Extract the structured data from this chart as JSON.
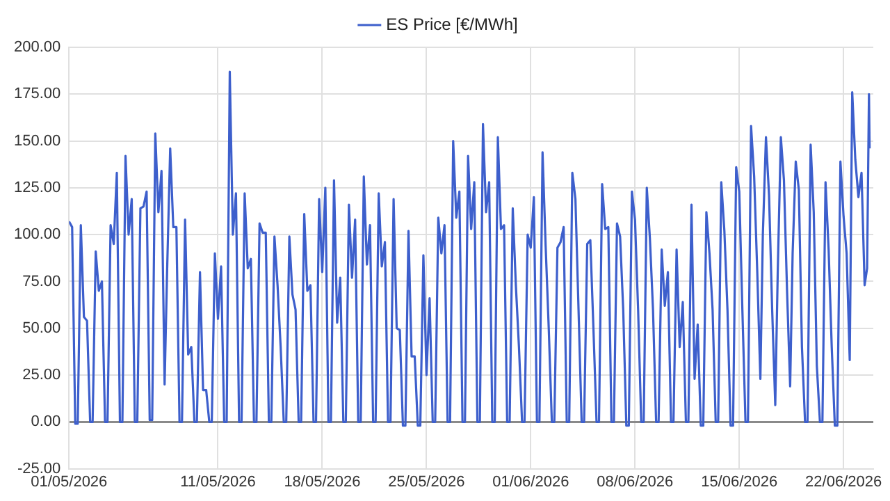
{
  "chart_data": {
    "type": "line",
    "legend": "top",
    "grid": true,
    "marker": "none",
    "line_style": "solid",
    "xlim": [
      "2026-05-01",
      "2026-06-24"
    ],
    "xticks": [
      {
        "value": "2026-05-01",
        "label": "01/05/2026"
      },
      {
        "value": "2026-05-11",
        "label": "11/05/2026"
      },
      {
        "value": "2026-05-18",
        "label": "18/05/2026"
      },
      {
        "value": "2026-05-25",
        "label": "25/05/2026"
      },
      {
        "value": "2026-06-01",
        "label": "01/06/2026"
      },
      {
        "value": "2026-06-08",
        "label": "08/06/2026"
      },
      {
        "value": "2026-06-15",
        "label": "15/06/2026"
      },
      {
        "value": "2026-06-22",
        "label": "22/06/2026"
      }
    ],
    "ylim": [
      -25,
      200
    ],
    "yticks": [
      {
        "value": -25,
        "label": "-25.00"
      },
      {
        "value": 0,
        "label": "0.00"
      },
      {
        "value": 25,
        "label": "25.00"
      },
      {
        "value": 50,
        "label": "50.00"
      },
      {
        "value": 75,
        "label": "75.00"
      },
      {
        "value": 100,
        "label": "100.00"
      },
      {
        "value": 125,
        "label": "125.00"
      },
      {
        "value": 150,
        "label": "150.00"
      },
      {
        "value": 175,
        "label": "175.00"
      },
      {
        "value": 200,
        "label": "200.00"
      }
    ],
    "x": [
      "2026-05-01T00:00",
      "2026-05-01T05:00",
      "2026-05-01T10:00",
      "2026-05-01T14:00",
      "2026-05-01T19:00",
      "2026-05-02T00:00",
      "2026-05-02T05:00",
      "2026-05-02T10:00",
      "2026-05-02T14:00",
      "2026-05-02T19:00",
      "2026-05-03T00:00",
      "2026-05-03T05:00",
      "2026-05-03T10:00",
      "2026-05-03T14:00",
      "2026-05-03T19:00",
      "2026-05-04T00:00",
      "2026-05-04T05:00",
      "2026-05-04T10:00",
      "2026-05-04T14:00",
      "2026-05-04T19:00",
      "2026-05-05T00:00",
      "2026-05-05T05:00",
      "2026-05-05T10:00",
      "2026-05-05T14:00",
      "2026-05-05T19:00",
      "2026-05-06T00:00",
      "2026-05-06T05:00",
      "2026-05-06T10:00",
      "2026-05-06T14:00",
      "2026-05-06T19:00",
      "2026-05-07T00:00",
      "2026-05-07T05:00",
      "2026-05-07T10:00",
      "2026-05-07T14:00",
      "2026-05-07T19:00",
      "2026-05-08T00:00",
      "2026-05-08T05:00",
      "2026-05-08T10:00",
      "2026-05-08T14:00",
      "2026-05-08T19:00",
      "2026-05-09T00:00",
      "2026-05-09T05:00",
      "2026-05-09T10:00",
      "2026-05-09T14:00",
      "2026-05-09T19:00",
      "2026-05-10T00:00",
      "2026-05-10T05:00",
      "2026-05-10T10:00",
      "2026-05-10T14:00",
      "2026-05-10T19:00",
      "2026-05-11T00:00",
      "2026-05-11T05:00",
      "2026-05-11T10:00",
      "2026-05-11T14:00",
      "2026-05-11T19:00",
      "2026-05-12T00:00",
      "2026-05-12T05:00",
      "2026-05-12T10:00",
      "2026-05-12T14:00",
      "2026-05-12T19:00",
      "2026-05-13T00:00",
      "2026-05-13T05:00",
      "2026-05-13T10:00",
      "2026-05-13T14:00",
      "2026-05-13T19:00",
      "2026-05-14T00:00",
      "2026-05-14T05:00",
      "2026-05-14T10:00",
      "2026-05-14T14:00",
      "2026-05-14T19:00",
      "2026-05-15T00:00",
      "2026-05-15T05:00",
      "2026-05-15T10:00",
      "2026-05-15T14:00",
      "2026-05-15T19:00",
      "2026-05-16T00:00",
      "2026-05-16T05:00",
      "2026-05-16T10:00",
      "2026-05-16T14:00",
      "2026-05-16T19:00",
      "2026-05-17T00:00",
      "2026-05-17T05:00",
      "2026-05-17T10:00",
      "2026-05-17T14:00",
      "2026-05-17T19:00",
      "2026-05-18T00:00",
      "2026-05-18T05:00",
      "2026-05-18T10:00",
      "2026-05-18T14:00",
      "2026-05-18T19:00",
      "2026-05-19T00:00",
      "2026-05-19T05:00",
      "2026-05-19T10:00",
      "2026-05-19T14:00",
      "2026-05-19T19:00",
      "2026-05-20T00:00",
      "2026-05-20T05:00",
      "2026-05-20T10:00",
      "2026-05-20T14:00",
      "2026-05-20T19:00",
      "2026-05-21T00:00",
      "2026-05-21T05:00",
      "2026-05-21T10:00",
      "2026-05-21T14:00",
      "2026-05-21T19:00",
      "2026-05-22T00:00",
      "2026-05-22T05:00",
      "2026-05-22T10:00",
      "2026-05-22T14:00",
      "2026-05-22T19:00",
      "2026-05-23T00:00",
      "2026-05-23T05:00",
      "2026-05-23T10:00",
      "2026-05-23T14:00",
      "2026-05-23T19:00",
      "2026-05-24T00:00",
      "2026-05-24T05:00",
      "2026-05-24T10:00",
      "2026-05-24T14:00",
      "2026-05-24T19:00",
      "2026-05-25T00:00",
      "2026-05-25T05:00",
      "2026-05-25T10:00",
      "2026-05-25T14:00",
      "2026-05-25T19:00",
      "2026-05-26T00:00",
      "2026-05-26T05:00",
      "2026-05-26T10:00",
      "2026-05-26T14:00",
      "2026-05-26T19:00",
      "2026-05-27T00:00",
      "2026-05-27T05:00",
      "2026-05-27T10:00",
      "2026-05-27T14:00",
      "2026-05-27T19:00",
      "2026-05-28T00:00",
      "2026-05-28T05:00",
      "2026-05-28T10:00",
      "2026-05-28T14:00",
      "2026-05-28T19:00",
      "2026-05-29T00:00",
      "2026-05-29T05:00",
      "2026-05-29T10:00",
      "2026-05-29T14:00",
      "2026-05-29T19:00",
      "2026-05-30T00:00",
      "2026-05-30T05:00",
      "2026-05-30T10:00",
      "2026-05-30T14:00",
      "2026-05-30T19:00",
      "2026-05-31T00:00",
      "2026-05-31T05:00",
      "2026-05-31T10:00",
      "2026-05-31T14:00",
      "2026-05-31T19:00",
      "2026-06-01T00:00",
      "2026-06-01T05:00",
      "2026-06-01T10:00",
      "2026-06-01T14:00",
      "2026-06-01T19:00",
      "2026-06-02T00:00",
      "2026-06-02T05:00",
      "2026-06-02T10:00",
      "2026-06-02T14:00",
      "2026-06-02T19:00",
      "2026-06-03T00:00",
      "2026-06-03T05:00",
      "2026-06-03T10:00",
      "2026-06-03T14:00",
      "2026-06-03T19:00",
      "2026-06-04T00:00",
      "2026-06-04T05:00",
      "2026-06-04T10:00",
      "2026-06-04T14:00",
      "2026-06-04T19:00",
      "2026-06-05T00:00",
      "2026-06-05T05:00",
      "2026-06-05T10:00",
      "2026-06-05T14:00",
      "2026-06-05T19:00",
      "2026-06-06T00:00",
      "2026-06-06T05:00",
      "2026-06-06T10:00",
      "2026-06-06T14:00",
      "2026-06-06T19:00",
      "2026-06-07T00:00",
      "2026-06-07T05:00",
      "2026-06-07T10:00",
      "2026-06-07T14:00",
      "2026-06-07T19:00",
      "2026-06-08T00:00",
      "2026-06-08T05:00",
      "2026-06-08T10:00",
      "2026-06-08T14:00",
      "2026-06-08T19:00",
      "2026-06-09T00:00",
      "2026-06-09T05:00",
      "2026-06-09T10:00",
      "2026-06-09T14:00",
      "2026-06-09T19:00",
      "2026-06-10T00:00",
      "2026-06-10T05:00",
      "2026-06-10T10:00",
      "2026-06-10T14:00",
      "2026-06-10T19:00",
      "2026-06-11T00:00",
      "2026-06-11T05:00",
      "2026-06-11T10:00",
      "2026-06-11T14:00",
      "2026-06-11T19:00",
      "2026-06-12T00:00",
      "2026-06-12T05:00",
      "2026-06-12T10:00",
      "2026-06-12T14:00",
      "2026-06-12T19:00",
      "2026-06-13T00:00",
      "2026-06-13T05:00",
      "2026-06-13T10:00",
      "2026-06-13T14:00",
      "2026-06-13T19:00",
      "2026-06-14T00:00",
      "2026-06-14T05:00",
      "2026-06-14T10:00",
      "2026-06-14T14:00",
      "2026-06-14T19:00",
      "2026-06-15T00:00",
      "2026-06-15T05:00",
      "2026-06-15T10:00",
      "2026-06-15T14:00",
      "2026-06-15T19:00",
      "2026-06-16T00:00",
      "2026-06-16T05:00",
      "2026-06-16T10:00",
      "2026-06-16T14:00",
      "2026-06-16T19:00",
      "2026-06-17T00:00",
      "2026-06-17T05:00",
      "2026-06-17T10:00",
      "2026-06-17T14:00",
      "2026-06-17T19:00",
      "2026-06-18T00:00",
      "2026-06-18T05:00",
      "2026-06-18T10:00",
      "2026-06-18T14:00",
      "2026-06-18T19:00",
      "2026-06-19T00:00",
      "2026-06-19T05:00",
      "2026-06-19T10:00",
      "2026-06-19T14:00",
      "2026-06-19T19:00",
      "2026-06-20T00:00",
      "2026-06-20T05:00",
      "2026-06-20T10:00",
      "2026-06-20T14:00",
      "2026-06-20T19:00",
      "2026-06-21T00:00",
      "2026-06-21T05:00",
      "2026-06-21T10:00",
      "2026-06-21T14:00",
      "2026-06-21T19:00",
      "2026-06-22T00:00",
      "2026-06-22T05:00",
      "2026-06-22T10:00",
      "2026-06-22T14:00",
      "2026-06-22T19:00",
      "2026-06-23T00:00",
      "2026-06-23T05:00",
      "2026-06-23T10:00",
      "2026-06-23T14:00",
      "2026-06-23T17:00",
      "2026-06-23T18:00"
    ],
    "series": [
      {
        "name": "ES Price [€/MWh]",
        "color": "#3d5fcc",
        "values": [
          107,
          104,
          -1,
          -1,
          105,
          56,
          54,
          0,
          0,
          91,
          70,
          75,
          0,
          0,
          105,
          95,
          133,
          0,
          0,
          142,
          100,
          119,
          0,
          0,
          114,
          115,
          123,
          1,
          1,
          154,
          112,
          134,
          20,
          80,
          146,
          104,
          104,
          0,
          0,
          108,
          36,
          40,
          0,
          0,
          80,
          17,
          17,
          0,
          0,
          90,
          55,
          83,
          0,
          0,
          187,
          100,
          122,
          0,
          0,
          122,
          82,
          87,
          0,
          0,
          106,
          101,
          101,
          0,
          0,
          99,
          73,
          40,
          0,
          0,
          99,
          68,
          60,
          0,
          0,
          111,
          70,
          73,
          0,
          0,
          119,
          80,
          125,
          0,
          0,
          129,
          53,
          77,
          0,
          0,
          116,
          77,
          108,
          0,
          0,
          131,
          84,
          105,
          0,
          0,
          122,
          83,
          96,
          0,
          0,
          119,
          50,
          49,
          -2,
          -2,
          102,
          35,
          35,
          -2,
          -2,
          89,
          25,
          66,
          0,
          0,
          109,
          90,
          105,
          0,
          0,
          150,
          109,
          123,
          0,
          0,
          142,
          103,
          128,
          0,
          0,
          159,
          112,
          128,
          0,
          0,
          152,
          103,
          105,
          0,
          0,
          114,
          73,
          40,
          0,
          0,
          100,
          93,
          120,
          0,
          0,
          144,
          94,
          50,
          0,
          0,
          93,
          96,
          104,
          0,
          0,
          133,
          119,
          60,
          0,
          0,
          95,
          97,
          50,
          0,
          0,
          127,
          103,
          104,
          0,
          0,
          106,
          99,
          60,
          -2,
          -2,
          123,
          108,
          60,
          0,
          0,
          125,
          98,
          60,
          0,
          0,
          92,
          62,
          80,
          0,
          0,
          92,
          40,
          64,
          0,
          0,
          116,
          23,
          52,
          -2,
          -2,
          112,
          90,
          60,
          0,
          0,
          128,
          102,
          60,
          -2,
          -2,
          136,
          123,
          60,
          0,
          0,
          158,
          131,
          80,
          23,
          100,
          152,
          121,
          60,
          9,
          80,
          152,
          129,
          70,
          19,
          90,
          139,
          124,
          40,
          0,
          0,
          148,
          112,
          30,
          0,
          0,
          128,
          92,
          40,
          -2,
          -2,
          139,
          110,
          90,
          33,
          176,
          140,
          120,
          133,
          73,
          82,
          175,
          146
        ]
      }
    ]
  }
}
